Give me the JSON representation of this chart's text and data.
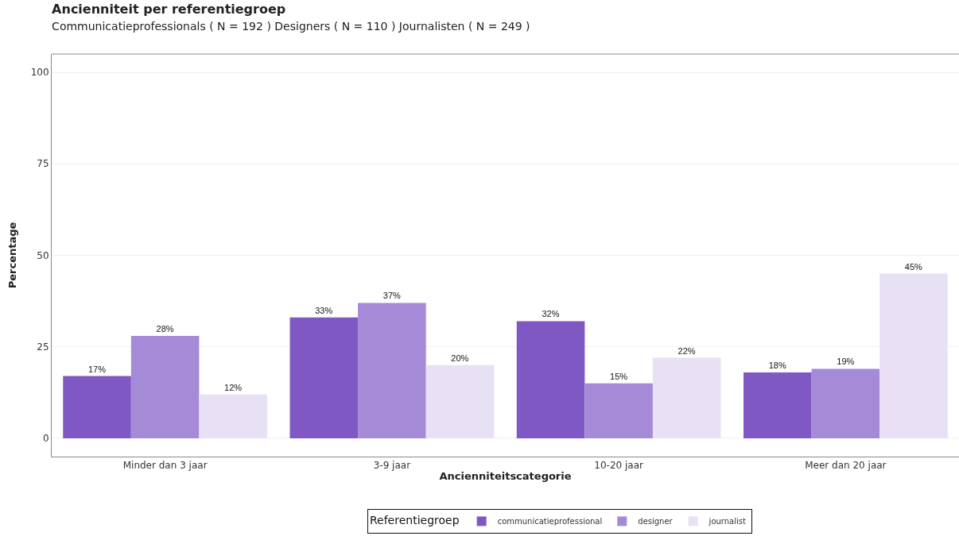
{
  "chart_data": {
    "type": "bar",
    "title": "Ancienniteit per referentiegroep",
    "subtitle": "Communicatieprofessionals ( N = 192 ) Designers ( N = 110 ) Journalisten ( N = 249 )",
    "xlabel": "Ancienniteitscategorie",
    "ylabel": "Percentage",
    "legend_title": "Referentiegroep",
    "categories": [
      "Minder dan 3 jaar",
      "3-9 jaar",
      "10-20 jaar",
      "Meer dan 20 jaar"
    ],
    "series": [
      {
        "name": "communicatieprofessional",
        "color": "#7f58c4",
        "values": [
          17,
          33,
          32,
          18
        ],
        "value_labels": [
          "17%",
          "33%",
          "32%",
          "18%"
        ]
      },
      {
        "name": "designer",
        "color": "#a58ad8",
        "values": [
          28,
          37,
          15,
          19
        ],
        "value_labels": [
          "28%",
          "37%",
          "15%",
          "19%"
        ]
      },
      {
        "name": "journalist",
        "color": "#e8e0f4",
        "values": [
          12,
          20,
          22,
          45
        ],
        "value_labels": [
          "12%",
          "20%",
          "22%",
          "45%"
        ]
      }
    ],
    "ylim": [
      -5,
      105
    ],
    "yticks": [
      0,
      25,
      50,
      75,
      100
    ],
    "grid": "y",
    "legend": "bottom"
  }
}
